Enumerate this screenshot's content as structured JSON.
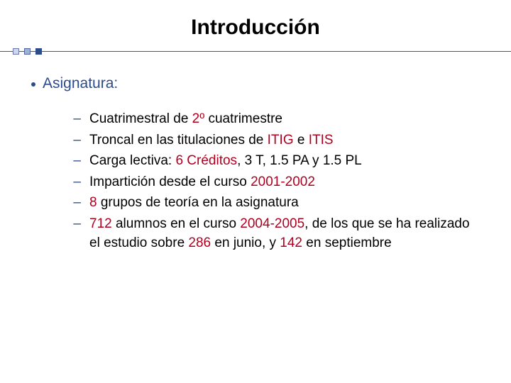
{
  "title": "Introducción",
  "title_color": "#000000",
  "title_fontsize": 30,
  "divider": {
    "line_color": "#555555",
    "squares": [
      {
        "x": 18,
        "fill": "#cfd8e8",
        "border": "#6a7aa8"
      },
      {
        "x": 34,
        "fill": "#9fb2d4",
        "border": "#50679c"
      },
      {
        "x": 50,
        "fill": "#2c4b8a",
        "border": "#2c4b8a"
      }
    ]
  },
  "bullet": {
    "marker_color": "#2c4b8a",
    "text": "Asignatura:",
    "text_color": "#2c4b8a",
    "fontsize": 21
  },
  "sublist": {
    "dash_color": "#2c4b8a",
    "text_color": "#000000",
    "highlight_color": "#b00020",
    "fontsize": 19,
    "items": [
      {
        "segments": [
          {
            "t": "Cuatrimestral de "
          },
          {
            "t": "2º",
            "hl": true
          },
          {
            "t": " cuatrimestre"
          }
        ]
      },
      {
        "segments": [
          {
            "t": "Troncal en las titulaciones de "
          },
          {
            "t": "ITIG",
            "hl": true
          },
          {
            "t": " e "
          },
          {
            "t": "ITIS",
            "hl": true
          }
        ]
      },
      {
        "segments": [
          {
            "t": "Carga lectiva: "
          },
          {
            "t": "6 Créditos",
            "hl": true
          },
          {
            "t": ", 3 T, 1.5 PA y 1.5 PL"
          }
        ]
      },
      {
        "segments": [
          {
            "t": "Impartición desde el curso "
          },
          {
            "t": "2001-2002",
            "hl": true
          }
        ]
      },
      {
        "segments": [
          {
            "t": "8",
            "hl": true
          },
          {
            "t": " grupos de teoría en la asignatura"
          }
        ]
      },
      {
        "segments": [
          {
            "t": "712",
            "hl": true
          },
          {
            "t": " alumnos en el curso "
          },
          {
            "t": "2004-2005",
            "hl": true
          },
          {
            "t": ", de los que se ha realizado el estudio sobre "
          },
          {
            "t": "286",
            "hl": true
          },
          {
            "t": " en junio, y "
          },
          {
            "t": "142",
            "hl": true
          },
          {
            "t": " en septiembre"
          }
        ]
      }
    ]
  }
}
